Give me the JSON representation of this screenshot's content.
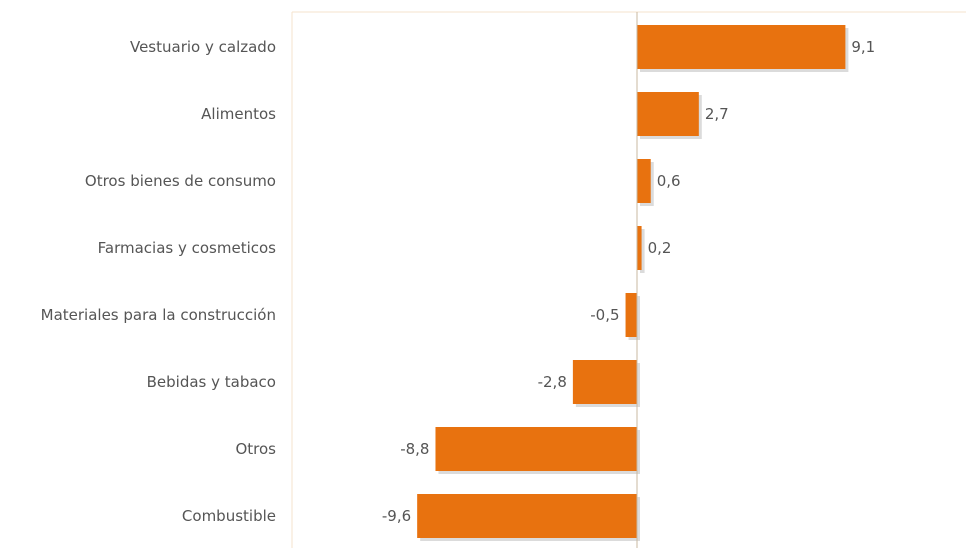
{
  "chart_data": {
    "type": "bar",
    "orientation": "horizontal",
    "categories": [
      "Vestuario y calzado",
      "Alimentos",
      "Otros bienes de consumo",
      "Farmacias y cosmeticos",
      "Materiales para la construcción",
      "Bebidas y tabaco",
      "Otros",
      "Combustible"
    ],
    "values": [
      9.1,
      2.7,
      0.6,
      0.2,
      -0.5,
      -2.8,
      -8.8,
      -9.6
    ],
    "value_labels": [
      "9,1",
      "2,7",
      "0,6",
      "0,2",
      "-0,5",
      "-2,8",
      "-8,8",
      "-9,6"
    ],
    "title": "",
    "xlabel": "",
    "ylabel": "",
    "xlim": [
      -9.6,
      9.1
    ],
    "grid": false,
    "legend": "none",
    "colors": {
      "bar": "#E8720F",
      "bar_shadow": "#BDBDBD",
      "axis": "#C8B8A0",
      "frame": "#F6E3CC",
      "text": "#555555"
    }
  }
}
